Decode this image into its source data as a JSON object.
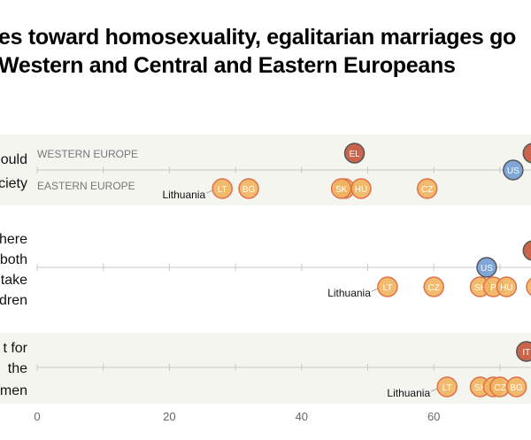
{
  "title": {
    "line1": "es toward homosexuality, egalitarian marriages go",
    "line2": "Western and Central and Eastern Europeans"
  },
  "colors": {
    "western": "#c9654b",
    "eastern": "#f2b45e",
    "eastern_border": "#e0704a",
    "us": "#7ea6d8",
    "band": "#f5f5f0"
  },
  "chart_data": {
    "type": "scatter",
    "xlim": [
      0,
      75
    ],
    "xticks": [
      "0",
      "20",
      "40",
      "60"
    ],
    "legend": {
      "western": "WESTERN EUROPE",
      "eastern": "EASTERN EUROPE"
    },
    "rows": [
      {
        "label": [
          "ould",
          "ciety"
        ],
        "banded": true,
        "points": [
          {
            "code": "EL",
            "group": "western",
            "value": 48
          },
          {
            "code": "I",
            "group": "western",
            "value": 75
          },
          {
            "code": "US",
            "group": "us",
            "value": 72
          },
          {
            "code": "LT",
            "group": "eastern",
            "value": 28
          },
          {
            "code": "BG",
            "group": "eastern",
            "value": 32
          },
          {
            "code": "",
            "group": "eastern",
            "value": 46.5
          },
          {
            "code": "SK",
            "group": "eastern",
            "value": 46
          },
          {
            "code": "HU",
            "group": "eastern",
            "value": 49
          },
          {
            "code": "CZ",
            "group": "eastern",
            "value": 59
          }
        ],
        "callout": "Lithuania"
      },
      {
        "label": [
          "here",
          "both",
          "take",
          "dren"
        ],
        "banded": false,
        "points": [
          {
            "code": "I",
            "group": "western",
            "value": 75
          },
          {
            "code": "US",
            "group": "us",
            "value": 68
          },
          {
            "code": "LT",
            "group": "eastern",
            "value": 53
          },
          {
            "code": "CZ",
            "group": "eastern",
            "value": 60
          },
          {
            "code": "SK",
            "group": "eastern",
            "value": 67
          },
          {
            "code": "P",
            "group": "eastern",
            "value": 69
          },
          {
            "code": "HU",
            "group": "eastern",
            "value": 71
          },
          {
            "code": "",
            "group": "eastern",
            "value": 75.5
          }
        ],
        "callout": "Lithuania"
      },
      {
        "label": [
          "t for",
          "the",
          "men"
        ],
        "banded": true,
        "points": [
          {
            "code": "IT",
            "group": "western",
            "value": 74
          },
          {
            "code": "LT",
            "group": "eastern",
            "value": 62
          },
          {
            "code": "SK",
            "group": "eastern",
            "value": 67
          },
          {
            "code": "",
            "group": "eastern",
            "value": 69
          },
          {
            "code": "CZ",
            "group": "eastern",
            "value": 70
          },
          {
            "code": "BG",
            "group": "eastern",
            "value": 72.5
          }
        ],
        "callout": "Lithuania"
      }
    ]
  }
}
